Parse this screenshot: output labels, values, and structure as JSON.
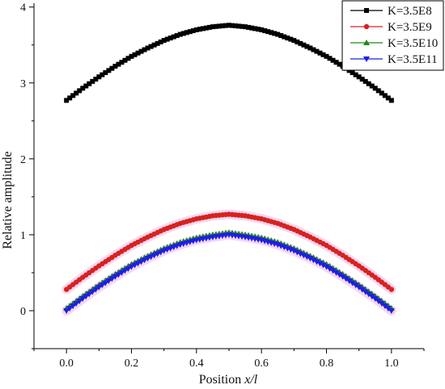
{
  "chart_data": {
    "type": "line",
    "title": "",
    "xlabel_parts": {
      "prefix": "Position ",
      "var": "x/l"
    },
    "ylabel": "Relative amplitude",
    "xlim": [
      -0.1,
      1.1
    ],
    "ylim": [
      -0.5,
      4.05
    ],
    "x_ticks": [
      0.0,
      0.2,
      0.4,
      0.6,
      0.8,
      1.0
    ],
    "x_tick_labels": [
      "0.0",
      "0.2",
      "0.4",
      "0.6",
      "0.8",
      "1.0"
    ],
    "y_ticks": [
      0,
      1,
      2,
      3,
      4
    ],
    "y_tick_labels": [
      "0",
      "1",
      "2",
      "3",
      "4"
    ],
    "grid": false,
    "legend_position": "top-right",
    "x": [
      0.0,
      0.05,
      0.1,
      0.15,
      0.2,
      0.25,
      0.3,
      0.35,
      0.4,
      0.45,
      0.5,
      0.55,
      0.6,
      0.65,
      0.7,
      0.75,
      0.8,
      0.85,
      0.9,
      0.95,
      1.0
    ],
    "series": [
      {
        "name": "K=3.5E8",
        "color": "#000000",
        "marker": "square",
        "values": [
          2.77,
          2.93,
          3.08,
          3.22,
          3.35,
          3.46,
          3.56,
          3.64,
          3.7,
          3.74,
          3.76,
          3.74,
          3.7,
          3.64,
          3.56,
          3.46,
          3.35,
          3.22,
          3.08,
          2.93,
          2.77
        ]
      },
      {
        "name": "K=3.5E9",
        "color": "#d6231e",
        "marker": "circle",
        "values": [
          0.28,
          0.44,
          0.59,
          0.73,
          0.86,
          0.97,
          1.07,
          1.15,
          1.21,
          1.25,
          1.27,
          1.25,
          1.21,
          1.15,
          1.07,
          0.97,
          0.86,
          0.73,
          0.59,
          0.44,
          0.28
        ]
      },
      {
        "name": "K=3.5E10",
        "color": "#1a8a1a",
        "marker": "triangle-up",
        "values": [
          0.03,
          0.19,
          0.34,
          0.48,
          0.61,
          0.72,
          0.82,
          0.9,
          0.96,
          1.0,
          1.03,
          1.0,
          0.96,
          0.9,
          0.82,
          0.72,
          0.61,
          0.48,
          0.34,
          0.19,
          0.03
        ]
      },
      {
        "name": "K=3.5E11",
        "color": "#1f1fe0",
        "marker": "triangle-down",
        "values": [
          0.0,
          0.16,
          0.31,
          0.45,
          0.58,
          0.69,
          0.79,
          0.87,
          0.93,
          0.97,
          1.0,
          0.97,
          0.93,
          0.87,
          0.79,
          0.69,
          0.58,
          0.45,
          0.31,
          0.16,
          0.0
        ]
      }
    ]
  }
}
